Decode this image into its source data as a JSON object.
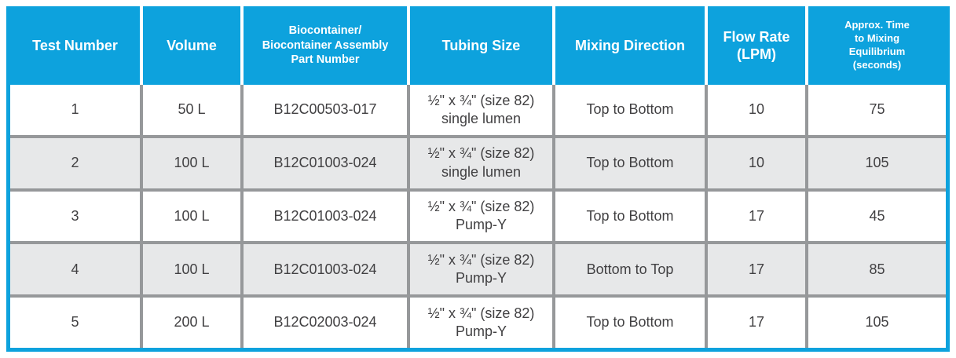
{
  "colors": {
    "frame": "#0da2dd",
    "header_bg": "#0da2dd",
    "header_text": "#ffffff",
    "grid_line": "#96989a",
    "row_even_bg": "#ffffff",
    "row_odd_bg": "#e7e8e9",
    "body_text": "#414042"
  },
  "table": {
    "headers": [
      {
        "label": "Test Number"
      },
      {
        "label": "Volume"
      },
      {
        "label": "Biocontainer/\nBiocontainer Assembly\nPart Number"
      },
      {
        "label": "Tubing Size"
      },
      {
        "label": "Mixing Direction"
      },
      {
        "label": "Flow Rate\n(LPM)"
      },
      {
        "label": "Approx. Time\nto Mixing\nEquilibrium\n(seconds)"
      }
    ],
    "rows": [
      {
        "test_number": "1",
        "volume": "50 L",
        "part_number": "B12C00503-017",
        "tubing_size": "½\" x ¾\" (size 82)\nsingle lumen",
        "mixing_direction": "Top to Bottom",
        "flow_rate": "10",
        "equilibrium_time": "75"
      },
      {
        "test_number": "2",
        "volume": "100 L",
        "part_number": "B12C01003-024",
        "tubing_size": "½\" x ¾\" (size 82)\nsingle lumen",
        "mixing_direction": "Top to Bottom",
        "flow_rate": "10",
        "equilibrium_time": "105"
      },
      {
        "test_number": "3",
        "volume": "100 L",
        "part_number": "B12C01003-024",
        "tubing_size": "½\" x ¾\" (size 82)\nPump-Y",
        "mixing_direction": "Top to Bottom",
        "flow_rate": "17",
        "equilibrium_time": "45"
      },
      {
        "test_number": "4",
        "volume": "100 L",
        "part_number": "B12C01003-024",
        "tubing_size": "½\" x ¾\" (size 82)\nPump-Y",
        "mixing_direction": "Bottom to Top",
        "flow_rate": "17",
        "equilibrium_time": "85"
      },
      {
        "test_number": "5",
        "volume": "200 L",
        "part_number": "B12C02003-024",
        "tubing_size": "½\" x ¾\" (size 82)\nPump-Y",
        "mixing_direction": "Top to Bottom",
        "flow_rate": "17",
        "equilibrium_time": "105"
      }
    ]
  }
}
